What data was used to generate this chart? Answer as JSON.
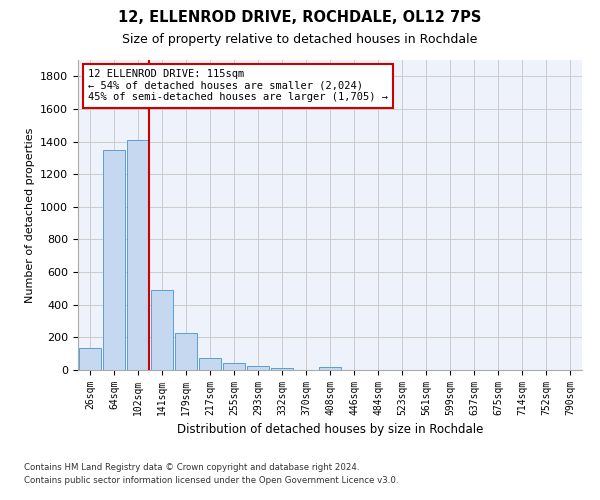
{
  "title1": "12, ELLENROD DRIVE, ROCHDALE, OL12 7PS",
  "title2": "Size of property relative to detached houses in Rochdale",
  "xlabel": "Distribution of detached houses by size in Rochdale",
  "ylabel": "Number of detached properties",
  "footer_line1": "Contains HM Land Registry data © Crown copyright and database right 2024.",
  "footer_line2": "Contains public sector information licensed under the Open Government Licence v3.0.",
  "bar_labels": [
    "26sqm",
    "64sqm",
    "102sqm",
    "141sqm",
    "179sqm",
    "217sqm",
    "255sqm",
    "293sqm",
    "332sqm",
    "370sqm",
    "408sqm",
    "446sqm",
    "484sqm",
    "523sqm",
    "561sqm",
    "599sqm",
    "637sqm",
    "675sqm",
    "714sqm",
    "752sqm",
    "790sqm"
  ],
  "bar_values": [
    135,
    1350,
    1410,
    490,
    225,
    75,
    45,
    25,
    15,
    0,
    20,
    0,
    0,
    0,
    0,
    0,
    0,
    0,
    0,
    0,
    0
  ],
  "bar_color": "#c5d8f0",
  "bar_edge_color": "#5a9fd4",
  "property_line_label1": "12 ELLENROD DRIVE: 115sqm",
  "property_line_label2": "← 54% of detached houses are smaller (2,024)",
  "property_line_label3": "45% of semi-detached houses are larger (1,705) →",
  "annotation_box_color": "#cc0000",
  "annotation_box_fill": "#ffffff",
  "line_color": "#cc0000",
  "ylim": [
    0,
    1900
  ],
  "yticks": [
    0,
    200,
    400,
    600,
    800,
    1000,
    1200,
    1400,
    1600,
    1800
  ],
  "grid_color": "#cccccc",
  "background_color": "#eef2fa"
}
